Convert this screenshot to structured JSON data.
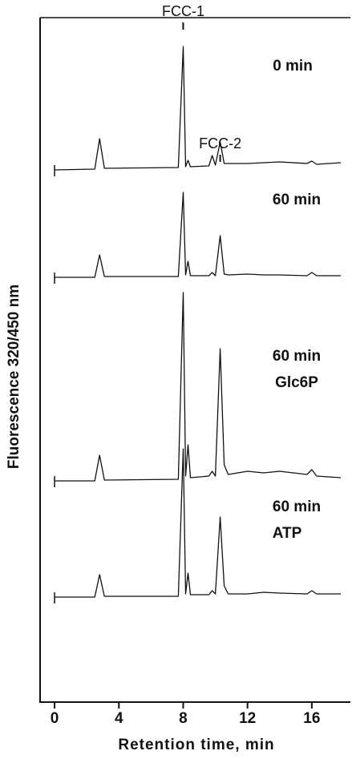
{
  "chart_data": {
    "type": "line",
    "y_label": "Fluorescence 320/450 nm",
    "x_label": "Retention time, min",
    "x": [
      0,
      2.5,
      2.8,
      3.1,
      7.7,
      8.0,
      8.15,
      8.3,
      8.45,
      9.6,
      9.8,
      10.0,
      10.3,
      10.55,
      10.8,
      12.0,
      13.0,
      14.0,
      15.7,
      16.0,
      16.3,
      17.8
    ],
    "xlim": [
      -0.9,
      18.4
    ],
    "xticks": [
      0,
      4,
      8,
      12,
      16
    ],
    "color": "#111111",
    "series": [
      {
        "name": "0 min",
        "values": [
          0,
          1,
          39,
          2,
          3,
          154,
          4,
          12,
          4,
          5,
          18,
          6,
          35,
          8,
          8,
          8,
          9,
          10,
          8,
          11,
          7,
          9
        ]
      },
      {
        "name": "60 min",
        "values": [
          0,
          0,
          28,
          1,
          1,
          106,
          3,
          20,
          2,
          2,
          6,
          2,
          52,
          4,
          3,
          4,
          3,
          3,
          2,
          6,
          2,
          2
        ]
      },
      {
        "name": "60 min",
        "condition": "Glc6P",
        "values": [
          0,
          0,
          32,
          1,
          2,
          235,
          6,
          45,
          4,
          6,
          12,
          6,
          165,
          20,
          8,
          12,
          10,
          12,
          8,
          14,
          6,
          4
        ]
      },
      {
        "name": "60 min",
        "condition": "ATP",
        "values": [
          0,
          0,
          28,
          1,
          1,
          185,
          4,
          30,
          3,
          3,
          8,
          4,
          100,
          14,
          4,
          4,
          6,
          5,
          4,
          8,
          4,
          4
        ]
      }
    ],
    "annotations": [
      {
        "text": "FCC-1",
        "x": 8.0
      },
      {
        "text": "FCC-2",
        "x": 10.3
      }
    ]
  }
}
